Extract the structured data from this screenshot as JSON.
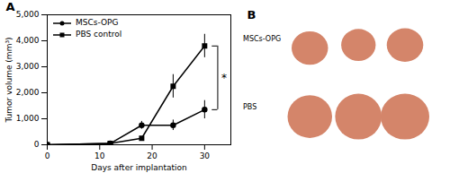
{
  "chart_data": {
    "type": "line",
    "x_label": "Days after implantation",
    "y_label": "Tumor volume (mm³)",
    "x": [
      0,
      12,
      18,
      24,
      30
    ],
    "series": [
      {
        "name": "MSCs-OPG",
        "color": "black",
        "marker": "circle",
        "values": [
          0,
          50,
          750,
          750,
          1350
        ],
        "error": [
          0,
          10,
          150,
          200,
          350
        ]
      },
      {
        "name": "PBS control",
        "color": "black",
        "marker": "square",
        "values": [
          0,
          50,
          250,
          2250,
          3800
        ],
        "error": [
          0,
          10,
          50,
          450,
          450
        ]
      }
    ],
    "xlim": [
      0,
      35
    ],
    "xticks": [
      0,
      10,
      20,
      30
    ],
    "ylim": [
      0,
      5000
    ],
    "yticks": [
      0,
      {
        "value": 1000,
        "label": "1,000"
      },
      {
        "value": 2000,
        "label": "2,000"
      },
      {
        "value": 3000,
        "label": "3,000"
      },
      {
        "value": 4000,
        "label": "4,000"
      },
      {
        "value": 5000,
        "label": "5,000"
      }
    ],
    "legend": "upper left",
    "grid": false,
    "annotations": [
      {
        "text": "A"
      },
      {
        "text": "*",
        "x": 32.5,
        "y": [
          1350,
          3800
        ]
      }
    ],
    "panel_b": {
      "label": "B",
      "rows": [
        "MSCs-OPG",
        "PBS"
      ]
    }
  }
}
